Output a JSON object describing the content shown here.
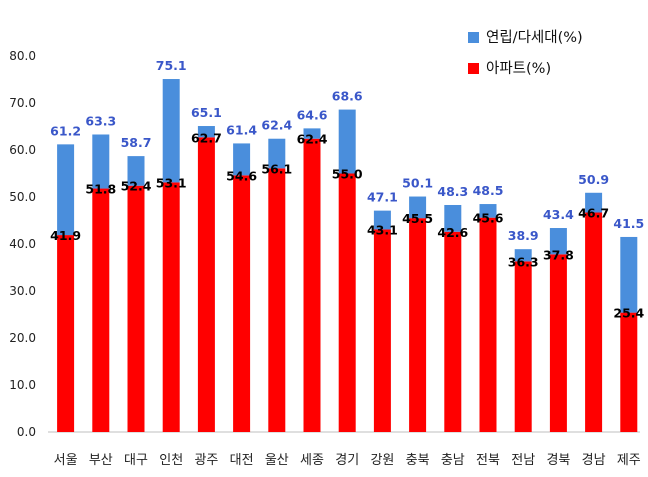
{
  "chart_data": {
    "type": "bar",
    "stacked": true,
    "categories": [
      "서울",
      "부산",
      "대구",
      "인천",
      "광주",
      "대전",
      "울산",
      "세종",
      "경기",
      "강원",
      "충북",
      "충남",
      "전북",
      "전남",
      "경북",
      "경남",
      "제주"
    ],
    "series": [
      {
        "name": "아파트(%)",
        "color": "#ff0000",
        "values": [
          41.9,
          51.8,
          52.4,
          53.1,
          62.7,
          54.6,
          56.1,
          62.4,
          55.0,
          43.1,
          45.5,
          42.6,
          45.6,
          36.3,
          37.8,
          46.7,
          25.4
        ],
        "labels": [
          "41.9",
          "51.8",
          "52.4",
          "53.1",
          "62.7",
          "54.6",
          "56.1",
          "62.4",
          "55.0",
          "43.1",
          "45.5",
          "42.6",
          "45.6",
          "36.3",
          "37.8",
          "46.7",
          "25.4"
        ]
      },
      {
        "name": "연립/다세대(%)",
        "color": "#4a8edc",
        "totals": [
          61.2,
          63.3,
          58.7,
          75.1,
          65.1,
          61.4,
          62.4,
          64.6,
          68.6,
          47.1,
          50.1,
          48.3,
          48.5,
          38.9,
          43.4,
          50.9,
          41.5
        ],
        "labels": [
          "61.2",
          "63.3",
          "58.7",
          "75.1",
          "65.1",
          "61.4",
          "62.4",
          "64.6",
          "68.6",
          "47.1",
          "50.1",
          "48.3",
          "48.5",
          "38.9",
          "43.4",
          "50.9",
          "41.5"
        ]
      }
    ],
    "ylim": [
      0,
      80
    ],
    "yticks": [
      "0.0",
      "10.0",
      "20.0",
      "30.0",
      "40.0",
      "50.0",
      "60.0",
      "70.0",
      "80.0"
    ],
    "grid": false,
    "legend": "top-right",
    "legend_order": [
      "연립/다세대(%)",
      "아파트(%)"
    ]
  }
}
